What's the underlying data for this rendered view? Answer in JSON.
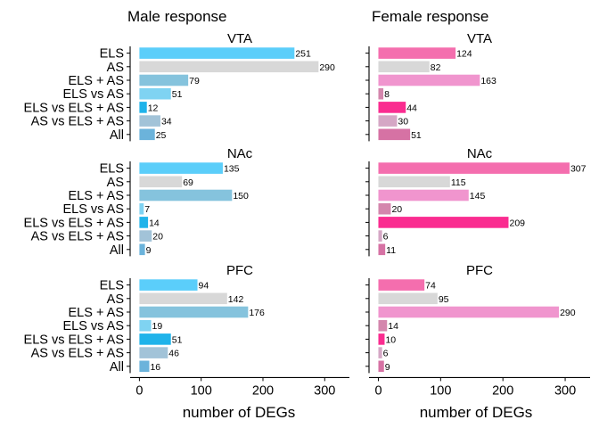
{
  "figure": {
    "xlabel": "number of DEGs",
    "xticks": [
      0,
      100,
      200,
      300
    ],
    "xlim": [
      -15,
      340
    ],
    "columns": [
      {
        "title": "Male response",
        "sex": "male"
      },
      {
        "title": "Female response",
        "sex": "female"
      }
    ],
    "colors": {
      "male": [
        "#5BCEFA",
        "#D8D8D8",
        "#85C3DD",
        "#7FD3F2",
        "#1FB3EA",
        "#A2C3D8",
        "#6BB3DB"
      ],
      "female": [
        "#F46EAE",
        "#D8D8D8",
        "#F095CE",
        "#D486AD",
        "#FA2C90",
        "#D5A7C5",
        "#D672A4"
      ]
    }
  },
  "chart_data": [
    {
      "type": "bar",
      "orientation": "horizontal",
      "title": "VTA",
      "sex": "male",
      "categories": [
        "ELS",
        "AS",
        "ELS + AS",
        "ELS vs AS",
        "ELS vs ELS + AS",
        "AS vs ELS + AS",
        "All"
      ],
      "values": [
        251,
        290,
        79,
        51,
        12,
        34,
        25
      ]
    },
    {
      "type": "bar",
      "orientation": "horizontal",
      "title": "VTA",
      "sex": "female",
      "categories": [
        "ELS",
        "AS",
        "ELS + AS",
        "ELS vs AS",
        "ELS vs ELS + AS",
        "AS vs ELS + AS",
        "All"
      ],
      "values": [
        124,
        82,
        163,
        8,
        44,
        30,
        51
      ]
    },
    {
      "type": "bar",
      "orientation": "horizontal",
      "title": "NAc",
      "sex": "male",
      "categories": [
        "ELS",
        "AS",
        "ELS + AS",
        "ELS vs AS",
        "ELS vs ELS + AS",
        "AS vs ELS + AS",
        "All"
      ],
      "values": [
        135,
        69,
        150,
        7,
        14,
        20,
        9
      ]
    },
    {
      "type": "bar",
      "orientation": "horizontal",
      "title": "NAc",
      "sex": "female",
      "categories": [
        "ELS",
        "AS",
        "ELS + AS",
        "ELS vs AS",
        "ELS vs ELS + AS",
        "AS vs ELS + AS",
        "All"
      ],
      "values": [
        307,
        115,
        145,
        20,
        209,
        6,
        11
      ]
    },
    {
      "type": "bar",
      "orientation": "horizontal",
      "title": "PFC",
      "sex": "male",
      "categories": [
        "ELS",
        "AS",
        "ELS + AS",
        "ELS vs AS",
        "ELS vs ELS + AS",
        "AS vs ELS + AS",
        "All"
      ],
      "values": [
        94,
        142,
        176,
        19,
        51,
        46,
        16
      ]
    },
    {
      "type": "bar",
      "orientation": "horizontal",
      "title": "PFC",
      "sex": "female",
      "categories": [
        "ELS",
        "AS",
        "ELS + AS",
        "ELS vs AS",
        "ELS vs ELS + AS",
        "AS vs ELS + AS",
        "All"
      ],
      "values": [
        74,
        95,
        290,
        14,
        10,
        6,
        9
      ]
    }
  ]
}
